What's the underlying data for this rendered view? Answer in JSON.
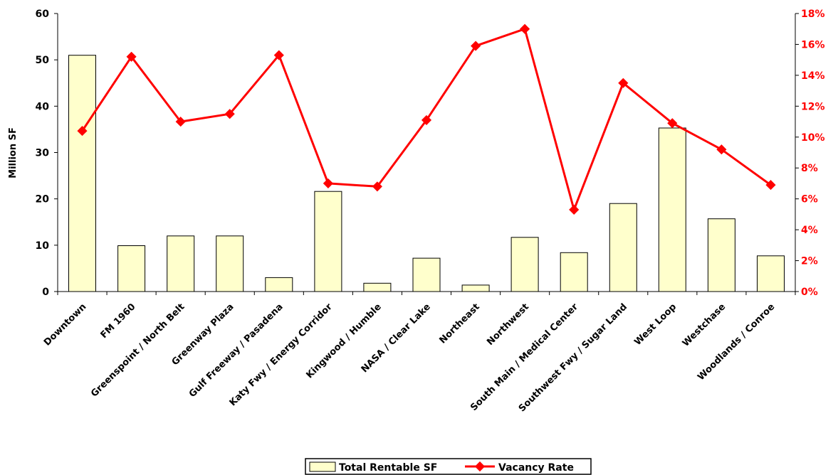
{
  "chart_data": {
    "type": "bar",
    "categories": [
      "Downtown",
      "FM 1960",
      "Greenspoint / North Belt",
      "Greenway Plaza",
      "Gulf Freeway / Pasadena",
      "Katy Fwy / Energy Corridor",
      "Kingwood / Humble",
      "NASA / Clear Lake",
      "Northeast",
      "Northwest",
      "South Main / Medical Center",
      "Southwest Fwy / Sugar Land",
      "West Loop",
      "Westchase",
      "Woodlands / Conroe"
    ],
    "series": [
      {
        "name": "Total Rentable SF",
        "type": "bar",
        "axis": "left",
        "color": "#FFFFCC",
        "values": [
          51.0,
          9.9,
          12.0,
          12.0,
          3.0,
          21.6,
          1.8,
          7.2,
          1.4,
          11.7,
          8.4,
          19.0,
          35.3,
          15.7,
          7.7
        ]
      },
      {
        "name": "Vacancy Rate",
        "type": "line",
        "axis": "right",
        "color": "#FF0000",
        "values": [
          10.4,
          15.2,
          11.0,
          11.5,
          15.3,
          7.0,
          6.8,
          11.1,
          15.9,
          17.0,
          5.3,
          13.5,
          10.9,
          9.2,
          6.9
        ]
      }
    ],
    "ylabel": "Million SF",
    "ylim": [
      0,
      60
    ],
    "y2lim": [
      0,
      18
    ],
    "yticks": [
      "0",
      "10",
      "20",
      "30",
      "40",
      "50",
      "60"
    ],
    "y2ticks": [
      "0%",
      "2%",
      "4%",
      "6%",
      "8%",
      "10%",
      "12%",
      "14%",
      "16%",
      "18%"
    ],
    "grid": false,
    "legend_position": "bottom"
  }
}
